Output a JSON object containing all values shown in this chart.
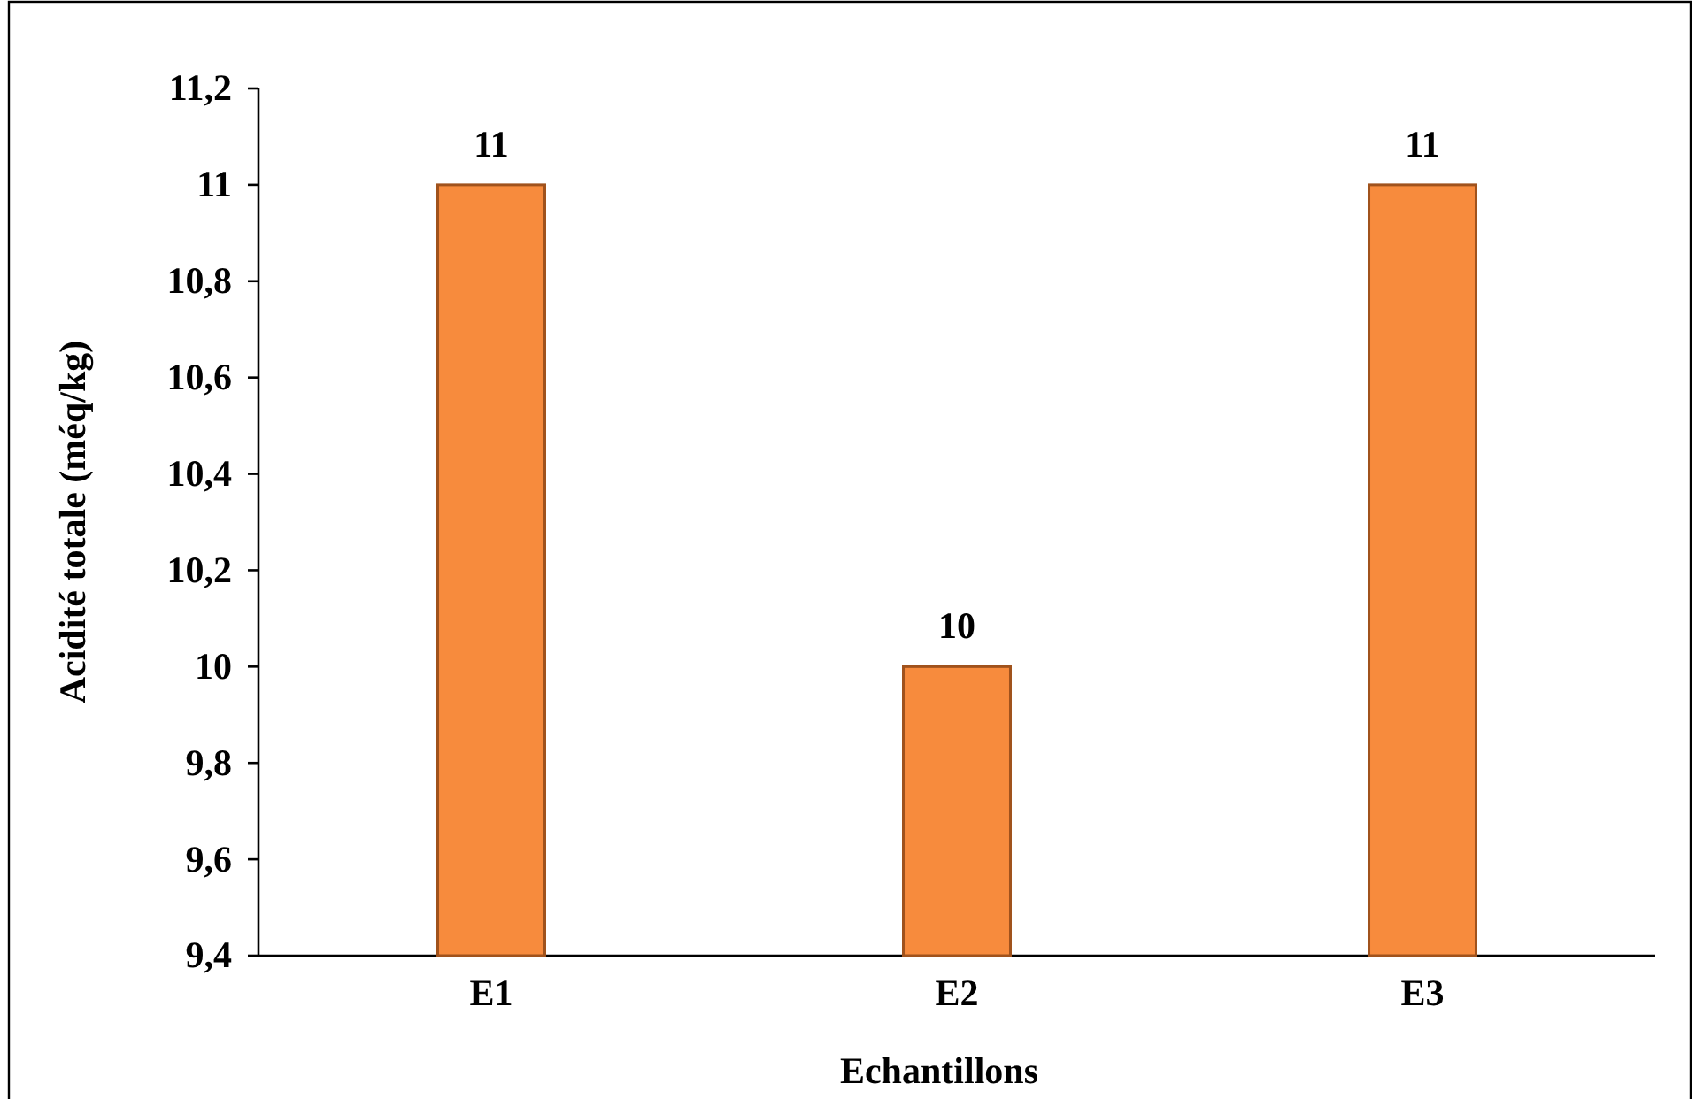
{
  "chart_data": {
    "type": "bar",
    "xlabel": "Echantillons",
    "ylabel": "Acidité totale (méq/kg)",
    "categories": [
      "E1",
      "E2",
      "E3"
    ],
    "values": [
      11,
      10,
      11
    ],
    "color": "#f78b3d",
    "ylim": [
      9.4,
      11.2
    ],
    "yticks": [
      {
        "value": 9.4,
        "label": "9,4"
      },
      {
        "value": 9.6,
        "label": "9,6"
      },
      {
        "value": 9.8,
        "label": "9,8"
      },
      10,
      {
        "value": 10.2,
        "label": "10,2"
      },
      {
        "value": 10.4,
        "label": "10,4"
      },
      {
        "value": 10.6,
        "label": "10,6"
      },
      {
        "value": 10.8,
        "label": "10,8"
      },
      11,
      {
        "value": 11.2,
        "label": "11,2"
      }
    ],
    "data_labels": true
  }
}
